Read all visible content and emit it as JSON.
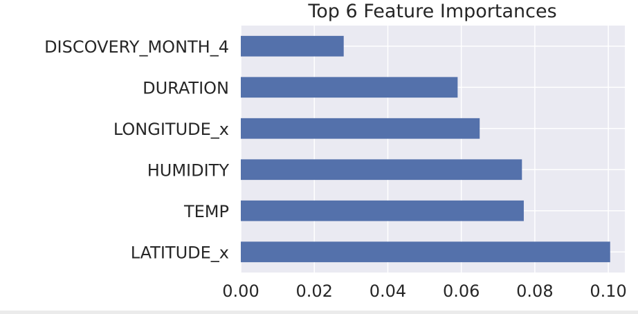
{
  "chart_data": {
    "type": "bar",
    "orientation": "horizontal",
    "title": "Top 6 Feature Importances",
    "xlabel": "",
    "ylabel": "",
    "categories": [
      "DISCOVERY_MONTH_4",
      "DURATION",
      "LONGITUDE_x",
      "HUMIDITY",
      "TEMP",
      "LATITUDE_x"
    ],
    "values": [
      0.028,
      0.059,
      0.065,
      0.0765,
      0.077,
      0.1005
    ],
    "xlim": [
      0.0,
      0.1045
    ],
    "xticks": [
      0.0,
      0.02,
      0.04,
      0.06,
      0.08,
      0.1
    ],
    "xtick_labels": [
      "0.00",
      "0.02",
      "0.04",
      "0.06",
      "0.08",
      "0.10"
    ],
    "grid": true,
    "legend": "none",
    "colors": {
      "bar": "#5471ab",
      "plot_background": "#eaeaf2",
      "grid": "#ffffff",
      "text": "#262626"
    }
  }
}
